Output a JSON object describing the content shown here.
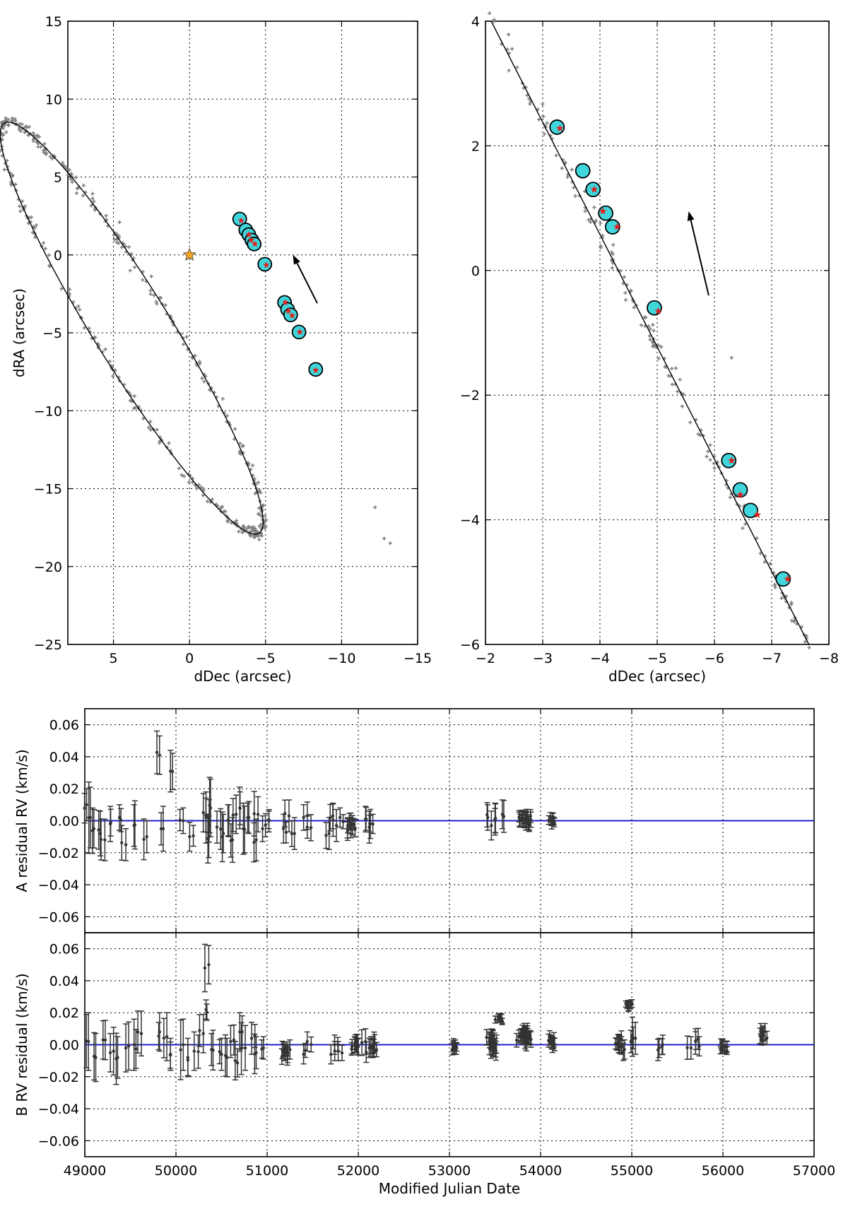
{
  "chart_data": [
    {
      "id": "orbit_full",
      "type": "scatter",
      "xlabel": "dDec (arcsec)",
      "ylabel": "dRA (arcsec)",
      "xlim": [
        8,
        -15
      ],
      "ylim": [
        -25,
        15
      ],
      "xticks": [
        5,
        0,
        -5,
        -10,
        -15
      ],
      "yticks": [
        -25,
        -20,
        -15,
        -10,
        -5,
        0,
        5,
        10,
        15
      ],
      "xtick_labels": [
        "5",
        "0",
        "−5",
        "−10",
        "−15"
      ],
      "ytick_labels": [
        "−25",
        "−20",
        "−15",
        "−10",
        "−5",
        "0",
        "5",
        "10",
        "15"
      ],
      "grid": true,
      "star": {
        "x": 0.0,
        "y": 0.0,
        "color": "#f5a623"
      },
      "orbit_ellipse": {
        "center_x": 3.8,
        "center_y": -4.7,
        "semi_major": 15.6,
        "semi_minor": 2.5,
        "rotation_deg": 57.5
      },
      "circle_points": [
        {
          "x": -3.3,
          "y": 2.3
        },
        {
          "x": -3.7,
          "y": 1.6
        },
        {
          "x": -3.9,
          "y": 1.3
        },
        {
          "x": -4.1,
          "y": 0.95
        },
        {
          "x": -4.25,
          "y": 0.7
        },
        {
          "x": -4.95,
          "y": -0.6
        },
        {
          "x": -6.25,
          "y": -3.05
        },
        {
          "x": -6.45,
          "y": -3.5
        },
        {
          "x": -6.65,
          "y": -3.85
        },
        {
          "x": -7.2,
          "y": -4.95
        },
        {
          "x": -8.3,
          "y": -7.35
        }
      ],
      "red_points": [
        {
          "x": -3.4,
          "y": 2.2
        },
        {
          "x": -3.9,
          "y": 1.3
        },
        {
          "x": -4.05,
          "y": 0.95
        },
        {
          "x": -4.3,
          "y": 0.7
        },
        {
          "x": -5.05,
          "y": -0.65
        },
        {
          "x": -6.3,
          "y": -3.05
        },
        {
          "x": -6.5,
          "y": -3.6
        },
        {
          "x": -6.75,
          "y": -3.9
        },
        {
          "x": -7.25,
          "y": -4.95
        },
        {
          "x": -8.3,
          "y": -7.4
        }
      ],
      "arrow": {
        "from": {
          "x": -8.4,
          "y": -3.1
        },
        "to": {
          "x": -6.8,
          "y": 0.0
        }
      }
    },
    {
      "id": "orbit_zoom",
      "type": "scatter",
      "xlabel": "dDec (arcsec)",
      "ylabel": "",
      "xlim": [
        -2,
        -8
      ],
      "ylim": [
        -6,
        4
      ],
      "xticks": [
        -2,
        -3,
        -4,
        -5,
        -6,
        -7,
        -8
      ],
      "yticks": [
        -6,
        -4,
        -2,
        0,
        2,
        4
      ],
      "xtick_labels": [
        "−2",
        "−3",
        "−4",
        "−5",
        "−6",
        "−7",
        "−8"
      ],
      "ytick_labels": [
        "−6",
        "−4",
        "−2",
        "0",
        "2",
        "4"
      ],
      "grid": true,
      "orbit_line": [
        {
          "x": -2.1,
          "y": 4.0
        },
        {
          "x": -7.65,
          "y": -6.0
        }
      ],
      "circle_points": [
        {
          "x": -3.25,
          "y": 2.3
        },
        {
          "x": -3.7,
          "y": 1.6
        },
        {
          "x": -3.88,
          "y": 1.3
        },
        {
          "x": -4.1,
          "y": 0.92
        },
        {
          "x": -4.22,
          "y": 0.7
        },
        {
          "x": -4.95,
          "y": -0.6
        },
        {
          "x": -6.25,
          "y": -3.05
        },
        {
          "x": -6.45,
          "y": -3.52
        },
        {
          "x": -6.63,
          "y": -3.85
        },
        {
          "x": -7.2,
          "y": -4.95
        }
      ],
      "red_points": [
        {
          "x": -3.3,
          "y": 2.28
        },
        {
          "x": -3.9,
          "y": 1.3
        },
        {
          "x": -4.05,
          "y": 0.95
        },
        {
          "x": -4.3,
          "y": 0.7
        },
        {
          "x": -5.02,
          "y": -0.65
        },
        {
          "x": -6.3,
          "y": -3.05
        },
        {
          "x": -6.45,
          "y": -3.6
        },
        {
          "x": -6.75,
          "y": -3.92
        },
        {
          "x": -7.28,
          "y": -4.95
        }
      ],
      "outliers": [
        {
          "x": -6.3,
          "y": -1.4
        }
      ],
      "arrow": {
        "from": {
          "x": -5.9,
          "y": -0.4
        },
        "to": {
          "x": -5.55,
          "y": 0.95
        }
      }
    },
    {
      "id": "rv_residual_A",
      "type": "scatter",
      "xlabel": "",
      "ylabel": "A residual RV (km/s)",
      "xlim": [
        49000,
        57000
      ],
      "ylim": [
        -0.07,
        0.07
      ],
      "xticks": [
        49000,
        50000,
        51000,
        52000,
        53000,
        54000,
        55000,
        56000,
        57000
      ],
      "yticks": [
        -0.06,
        -0.04,
        -0.02,
        0.0,
        0.02,
        0.04,
        0.06
      ],
      "ytick_labels": [
        "−0.06",
        "−0.04",
        "−0.02",
        "0.00",
        "0.02",
        "0.04",
        "0.06"
      ],
      "zero_line": 0.0,
      "grid": true,
      "points": [
        {
          "x": 49020,
          "y": 0.01,
          "err": 0.01
        },
        {
          "x": 49060,
          "y": 0.002,
          "err": 0.019
        },
        {
          "x": 49100,
          "y": -0.005,
          "err": 0.012
        },
        {
          "x": 49170,
          "y": -0.008,
          "err": 0.014
        },
        {
          "x": 49220,
          "y": -0.012,
          "err": 0.013
        },
        {
          "x": 49280,
          "y": -0.002,
          "err": 0.011
        },
        {
          "x": 49380,
          "y": 0.002,
          "err": 0.008
        },
        {
          "x": 49450,
          "y": -0.015,
          "err": 0.01
        },
        {
          "x": 49540,
          "y": -0.003,
          "err": 0.013
        },
        {
          "x": 49680,
          "y": -0.01,
          "err": 0.01
        },
        {
          "x": 49820,
          "y": 0.041,
          "err": 0.012
        },
        {
          "x": 49860,
          "y": -0.005,
          "err": 0.014
        },
        {
          "x": 49940,
          "y": 0.031,
          "err": 0.013
        },
        {
          "x": 50080,
          "y": 0.0,
          "err": 0.008
        },
        {
          "x": 50150,
          "y": -0.01,
          "err": 0.009
        },
        {
          "x": 50300,
          "y": 0.005,
          "err": 0.012
        },
        {
          "x": 50330,
          "y": 0.002,
          "err": 0.016
        },
        {
          "x": 50360,
          "y": -0.01,
          "err": 0.013
        },
        {
          "x": 50380,
          "y": 0.008,
          "err": 0.018
        },
        {
          "x": 50450,
          "y": -0.004,
          "err": 0.01
        },
        {
          "x": 50520,
          "y": -0.008,
          "err": 0.012
        },
        {
          "x": 50580,
          "y": 0.0,
          "err": 0.01
        },
        {
          "x": 50620,
          "y": -0.012,
          "err": 0.014
        },
        {
          "x": 50660,
          "y": 0.004,
          "err": 0.012
        },
        {
          "x": 50700,
          "y": 0.008,
          "err": 0.013
        },
        {
          "x": 50740,
          "y": -0.005,
          "err": 0.016
        },
        {
          "x": 50800,
          "y": 0.002,
          "err": 0.01
        },
        {
          "x": 50880,
          "y": -0.012,
          "err": 0.013
        },
        {
          "x": 50900,
          "y": 0.004,
          "err": 0.011
        },
        {
          "x": 50950,
          "y": -0.005,
          "err": 0.008
        },
        {
          "x": 51020,
          "y": 0.0,
          "err": 0.007
        },
        {
          "x": 51180,
          "y": -0.005,
          "err": 0.009
        },
        {
          "x": 51240,
          "y": 0.003,
          "err": 0.01
        },
        {
          "x": 51300,
          "y": -0.008,
          "err": 0.01
        },
        {
          "x": 51400,
          "y": 0.002,
          "err": 0.008
        },
        {
          "x": 51440,
          "y": -0.004,
          "err": 0.007
        },
        {
          "x": 51680,
          "y": -0.008,
          "err": 0.01
        },
        {
          "x": 51720,
          "y": 0.003,
          "err": 0.008
        },
        {
          "x": 51760,
          "y": -0.003,
          "err": 0.01
        },
        {
          "x": 51800,
          "y": 0.002,
          "err": 0.006
        },
        {
          "x": 51920,
          "y": -0.003,
          "err": 0.005
        },
        {
          "x": 52080,
          "y": 0.001,
          "err": 0.008
        },
        {
          "x": 52120,
          "y": -0.004,
          "err": 0.01
        },
        {
          "x": 52160,
          "y": -0.002,
          "err": 0.006
        },
        {
          "x": 53420,
          "y": 0.002,
          "err": 0.008
        },
        {
          "x": 53460,
          "y": -0.003,
          "err": 0.009
        },
        {
          "x": 53500,
          "y": 0.001,
          "err": 0.01
        },
        {
          "x": 53580,
          "y": 0.004,
          "err": 0.009
        },
        {
          "x": 53800,
          "y": 0.002,
          "err": 0.004
        },
        {
          "x": 53850,
          "y": 0.0,
          "err": 0.004
        },
        {
          "x": 54120,
          "y": 0.0,
          "err": 0.003
        }
      ]
    },
    {
      "id": "rv_residual_B",
      "type": "scatter",
      "xlabel": "Modified Julian Date",
      "ylabel": "B RV residual (km/s)",
      "xlim": [
        49000,
        57000
      ],
      "ylim": [
        -0.07,
        0.07
      ],
      "xticks": [
        49000,
        50000,
        51000,
        52000,
        53000,
        54000,
        55000,
        56000,
        57000
      ],
      "xtick_labels": [
        "49000",
        "50000",
        "51000",
        "52000",
        "53000",
        "54000",
        "55000",
        "56000",
        "57000"
      ],
      "yticks": [
        -0.06,
        -0.04,
        -0.02,
        0.0,
        0.02,
        0.04,
        0.06
      ],
      "ytick_labels": [
        "−0.06",
        "−0.04",
        "−0.02",
        "0.00",
        "0.02",
        "0.04",
        "0.06"
      ],
      "zero_line": 0.0,
      "grid": true,
      "points": [
        {
          "x": 49040,
          "y": 0.002,
          "err": 0.018
        },
        {
          "x": 49120,
          "y": -0.008,
          "err": 0.015
        },
        {
          "x": 49200,
          "y": 0.003,
          "err": 0.012
        },
        {
          "x": 49280,
          "y": -0.005,
          "err": 0.012
        },
        {
          "x": 49360,
          "y": -0.008,
          "err": 0.013
        },
        {
          "x": 49450,
          "y": -0.002,
          "err": 0.015
        },
        {
          "x": 49540,
          "y": 0.0,
          "err": 0.016
        },
        {
          "x": 49620,
          "y": 0.007,
          "err": 0.014
        },
        {
          "x": 49820,
          "y": 0.008,
          "err": 0.012
        },
        {
          "x": 49900,
          "y": 0.005,
          "err": 0.015
        },
        {
          "x": 49940,
          "y": -0.006,
          "err": 0.01
        },
        {
          "x": 50080,
          "y": 0.0,
          "err": 0.016
        },
        {
          "x": 50130,
          "y": -0.008,
          "err": 0.012
        },
        {
          "x": 50200,
          "y": -0.004,
          "err": 0.012
        },
        {
          "x": 50300,
          "y": 0.007,
          "err": 0.012
        },
        {
          "x": 50330,
          "y": 0.022,
          "err": 0.006
        },
        {
          "x": 50360,
          "y": 0.05,
          "err": 0.012
        },
        {
          "x": 50390,
          "y": -0.003,
          "err": 0.01
        },
        {
          "x": 50500,
          "y": -0.006,
          "err": 0.01
        },
        {
          "x": 50560,
          "y": -0.008,
          "err": 0.012
        },
        {
          "x": 50600,
          "y": 0.002,
          "err": 0.01
        },
        {
          "x": 50650,
          "y": -0.01,
          "err": 0.012
        },
        {
          "x": 50700,
          "y": 0.008,
          "err": 0.012
        },
        {
          "x": 50760,
          "y": -0.002,
          "err": 0.014
        },
        {
          "x": 50830,
          "y": 0.004,
          "err": 0.01
        },
        {
          "x": 50880,
          "y": -0.005,
          "err": 0.01
        },
        {
          "x": 50960,
          "y": -0.002,
          "err": 0.007
        },
        {
          "x": 51200,
          "y": -0.005,
          "err": 0.005
        },
        {
          "x": 51250,
          "y": -0.003,
          "err": 0.006
        },
        {
          "x": 51400,
          "y": -0.006,
          "err": 0.006
        },
        {
          "x": 51440,
          "y": 0.002,
          "err": 0.006
        },
        {
          "x": 51700,
          "y": -0.006,
          "err": 0.006
        },
        {
          "x": 51740,
          "y": 0.0,
          "err": 0.006
        },
        {
          "x": 51780,
          "y": -0.004,
          "err": 0.006
        },
        {
          "x": 51960,
          "y": 0.0,
          "err": 0.005
        },
        {
          "x": 52080,
          "y": 0.002,
          "err": 0.008
        },
        {
          "x": 52120,
          "y": -0.002,
          "err": 0.006
        },
        {
          "x": 52160,
          "y": 0.0,
          "err": 0.005
        },
        {
          "x": 53040,
          "y": -0.001,
          "err": 0.003
        },
        {
          "x": 53440,
          "y": 0.004,
          "err": 0.004
        },
        {
          "x": 53480,
          "y": -0.002,
          "err": 0.005
        },
        {
          "x": 53540,
          "y": 0.016,
          "err": 0.002
        },
        {
          "x": 53780,
          "y": 0.006,
          "err": 0.004
        },
        {
          "x": 53830,
          "y": 0.008,
          "err": 0.003
        },
        {
          "x": 53870,
          "y": 0.004,
          "err": 0.004
        },
        {
          "x": 54120,
          "y": 0.002,
          "err": 0.004
        },
        {
          "x": 54860,
          "y": 0.0,
          "err": 0.005
        },
        {
          "x": 54920,
          "y": -0.003,
          "err": 0.006
        },
        {
          "x": 54960,
          "y": 0.025,
          "err": 0.002
        },
        {
          "x": 54990,
          "y": 0.002,
          "err": 0.007
        },
        {
          "x": 55040,
          "y": 0.004,
          "err": 0.01
        },
        {
          "x": 55300,
          "y": -0.002,
          "err": 0.006
        },
        {
          "x": 55340,
          "y": 0.0,
          "err": 0.006
        },
        {
          "x": 55650,
          "y": -0.002,
          "err": 0.007
        },
        {
          "x": 55700,
          "y": 0.002,
          "err": 0.008
        },
        {
          "x": 55740,
          "y": -0.001,
          "err": 0.006
        },
        {
          "x": 56000,
          "y": -0.001,
          "err": 0.003
        },
        {
          "x": 56440,
          "y": 0.006,
          "err": 0.004
        }
      ]
    }
  ]
}
